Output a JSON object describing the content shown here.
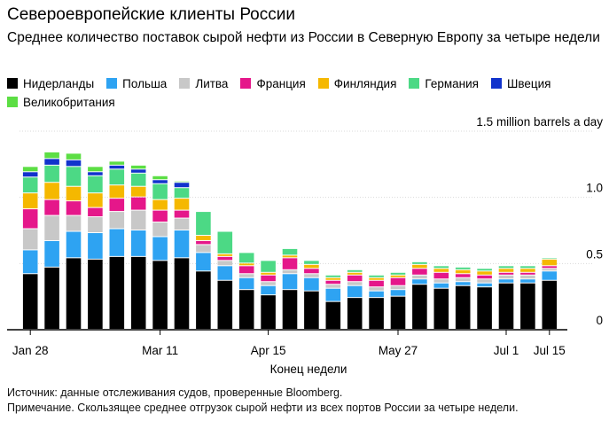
{
  "chart_data": {
    "type": "bar",
    "stacked": true,
    "title": "Североевропейские клиенты России",
    "subtitle": "Среднее количество поставок сырой нефти из России в Северную Европу за четыре недели",
    "xlabel": "Конец недели",
    "ylabel": "1.5 million barrels a day",
    "ylim": [
      0,
      1.5
    ],
    "yticks": [
      {
        "value": 0,
        "label": "0"
      },
      {
        "value": 0.5,
        "label": "0.5"
      },
      {
        "value": 1.0,
        "label": "1.0"
      },
      {
        "value": 1.5,
        "label": "1.5 million barrels a day"
      }
    ],
    "xtick_labels": [
      {
        "index": 0,
        "label": "Jan 28"
      },
      {
        "index": 6,
        "label": "Mar 11"
      },
      {
        "index": 11,
        "label": "Apr 15"
      },
      {
        "index": 17,
        "label": "May 27"
      },
      {
        "index": 22,
        "label": "Jul 1"
      },
      {
        "index": 24,
        "label": "Jul 15"
      }
    ],
    "categories": [
      "Jan 28",
      "Feb 4",
      "Feb 11",
      "Feb 18",
      "Feb 25",
      "Mar 4",
      "Mar 11",
      "Mar 18",
      "Mar 25",
      "Apr 1",
      "Apr 8",
      "Apr 15",
      "Apr 22",
      "Apr 29",
      "May 6",
      "May 13",
      "May 20",
      "May 27",
      "Jun 3",
      "Jun 10",
      "Jun 17",
      "Jun 24",
      "Jul 1",
      "Jul 8",
      "Jul 15"
    ],
    "series": [
      {
        "name": "Нидерланды",
        "color": "#000000",
        "values": [
          0.42,
          0.47,
          0.54,
          0.53,
          0.55,
          0.55,
          0.52,
          0.54,
          0.44,
          0.37,
          0.3,
          0.26,
          0.3,
          0.29,
          0.21,
          0.24,
          0.24,
          0.25,
          0.34,
          0.31,
          0.33,
          0.32,
          0.35,
          0.35,
          0.37
        ]
      },
      {
        "name": "Польша",
        "color": "#2ea3f2",
        "values": [
          0.18,
          0.2,
          0.2,
          0.2,
          0.21,
          0.2,
          0.18,
          0.21,
          0.14,
          0.11,
          0.09,
          0.07,
          0.12,
          0.1,
          0.1,
          0.09,
          0.05,
          0.05,
          0.04,
          0.04,
          0.03,
          0.03,
          0.03,
          0.03,
          0.07
        ]
      },
      {
        "name": "Литва",
        "color": "#c8c8c8",
        "values": [
          0.16,
          0.19,
          0.12,
          0.12,
          0.13,
          0.15,
          0.11,
          0.09,
          0.06,
          0.04,
          0.03,
          0.03,
          0.03,
          0.03,
          0.03,
          0.03,
          0.03,
          0.03,
          0.03,
          0.03,
          0.03,
          0.03,
          0.03,
          0.03,
          0.02
        ]
      },
      {
        "name": "Франция",
        "color": "#e5178a",
        "values": [
          0.15,
          0.12,
          0.11,
          0.07,
          0.1,
          0.1,
          0.09,
          0.06,
          0.03,
          0.03,
          0.06,
          0.05,
          0.09,
          0.04,
          0.03,
          0.05,
          0.05,
          0.06,
          0.05,
          0.05,
          0.03,
          0.03,
          0.02,
          0.02,
          0.02
        ]
      },
      {
        "name": "Финляндия",
        "color": "#f5b800",
        "values": [
          0.12,
          0.13,
          0.11,
          0.11,
          0.1,
          0.08,
          0.08,
          0.09,
          0.04,
          0.02,
          0.02,
          0.02,
          0.02,
          0.03,
          0.02,
          0.02,
          0.02,
          0.02,
          0.03,
          0.03,
          0.03,
          0.03,
          0.03,
          0.03,
          0.05
        ]
      },
      {
        "name": "Германия",
        "color": "#4cd985",
        "values": [
          0.12,
          0.13,
          0.15,
          0.13,
          0.12,
          0.1,
          0.12,
          0.08,
          0.18,
          0.17,
          0.08,
          0.09,
          0.05,
          0.03,
          0.02,
          0.02,
          0.02,
          0.02,
          0.02,
          0.02,
          0.02,
          0.02,
          0.02,
          0.02,
          0.01
        ]
      },
      {
        "name": "Швеция",
        "color": "#1133cc",
        "values": [
          0.04,
          0.05,
          0.05,
          0.03,
          0.03,
          0.03,
          0.03,
          0.04,
          0.0,
          0.0,
          0.0,
          0.0,
          0.0,
          0.0,
          0.0,
          0.0,
          0.0,
          0.0,
          0.0,
          0.0,
          0.0,
          0.0,
          0.0,
          0.0,
          0.0
        ]
      },
      {
        "name": "Великобритания",
        "color": "#5cde44",
        "values": [
          0.04,
          0.05,
          0.05,
          0.04,
          0.03,
          0.03,
          0.03,
          0.01,
          0.0,
          0.0,
          0.0,
          0.0,
          0.0,
          0.0,
          0.0,
          0.0,
          0.0,
          0.0,
          0.0,
          0.0,
          0.0,
          0.0,
          0.0,
          0.0,
          0.0
        ]
      }
    ]
  },
  "footer": {
    "source": "Источник: данные отслеживания судов, проверенные Bloomberg.",
    "note": "Примечание. Скользящее среднее отгрузок сырой нефти из всех портов России за четыре недели."
  }
}
